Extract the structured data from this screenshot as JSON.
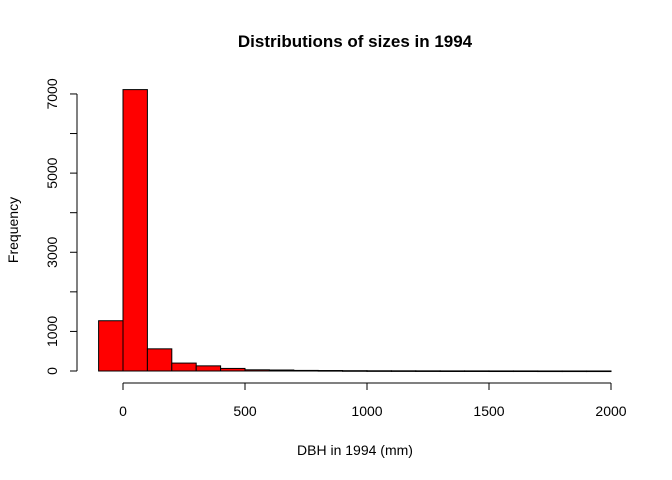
{
  "chart_data": {
    "type": "bar",
    "title": "Distributions of sizes in 1994",
    "xlabel": "DBH in 1994 (mm)",
    "ylabel": "Frequency",
    "xlim": [
      -100,
      2000
    ],
    "ylim": [
      0,
      7100
    ],
    "bin_width": 100,
    "bins": [
      {
        "start": -100,
        "end": 0,
        "count": 1270
      },
      {
        "start": 0,
        "end": 100,
        "count": 7110
      },
      {
        "start": 100,
        "end": 200,
        "count": 560
      },
      {
        "start": 200,
        "end": 300,
        "count": 200
      },
      {
        "start": 300,
        "end": 400,
        "count": 130
      },
      {
        "start": 400,
        "end": 500,
        "count": 65
      },
      {
        "start": 500,
        "end": 600,
        "count": 30
      },
      {
        "start": 600,
        "end": 700,
        "count": 25
      },
      {
        "start": 700,
        "end": 800,
        "count": 15
      },
      {
        "start": 800,
        "end": 900,
        "count": 12
      },
      {
        "start": 900,
        "end": 1000,
        "count": 8
      },
      {
        "start": 1000,
        "end": 1100,
        "count": 6
      },
      {
        "start": 1100,
        "end": 1200,
        "count": 5
      },
      {
        "start": 1200,
        "end": 1300,
        "count": 4
      },
      {
        "start": 1300,
        "end": 1400,
        "count": 3
      },
      {
        "start": 1400,
        "end": 1500,
        "count": 3
      },
      {
        "start": 1500,
        "end": 1600,
        "count": 2
      },
      {
        "start": 1600,
        "end": 1700,
        "count": 2
      },
      {
        "start": 1700,
        "end": 1800,
        "count": 1
      },
      {
        "start": 1800,
        "end": 1900,
        "count": 1
      },
      {
        "start": 1900,
        "end": 2000,
        "count": 1
      }
    ],
    "x_ticks": [
      0,
      500,
      1000,
      1500,
      2000
    ],
    "x_tick_labels": [
      "0",
      "500",
      "1000",
      "1500",
      "2000"
    ],
    "y_ticks": [
      0,
      1000,
      2000,
      3000,
      4000,
      5000,
      6000,
      7000
    ],
    "y_tick_labels": [
      "0",
      "1000",
      "",
      "3000",
      "",
      "5000",
      "",
      "7000"
    ],
    "bar_color": "#ff0000",
    "bar_edge_color": "#000000",
    "grid": false,
    "legend": "none"
  }
}
